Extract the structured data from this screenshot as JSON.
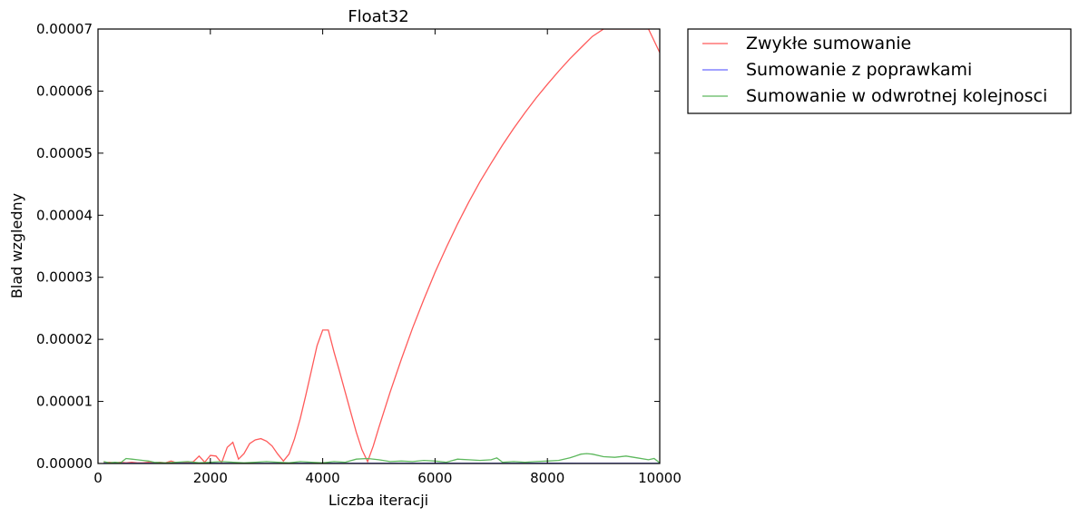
{
  "chart_data": {
    "type": "line",
    "title": "Float32",
    "xlabel": "Liczba iteracji",
    "ylabel": "Blad wzgledny",
    "xlim": [
      0,
      10000
    ],
    "ylim": [
      0,
      7e-05
    ],
    "xticks": [
      0,
      2000,
      4000,
      6000,
      8000,
      10000
    ],
    "xtick_labels": [
      "0",
      "2000",
      "4000",
      "6000",
      "8000",
      "10000"
    ],
    "yticks": [
      0,
      1e-05,
      2e-05,
      3e-05,
      4e-05,
      5e-05,
      6e-05,
      7e-05
    ],
    "ytick_labels": [
      "0.00000",
      "0.00001",
      "0.00002",
      "0.00003",
      "0.00004",
      "0.00005",
      "0.00006",
      "0.00007"
    ],
    "grid": false,
    "legend_position": "outside-top-right",
    "series": [
      {
        "name": "Zwykłe sumowanie",
        "color": "#ff5a5a",
        "x": [
          100,
          200,
          300,
          400,
          500,
          600,
          700,
          800,
          900,
          1000,
          1100,
          1200,
          1300,
          1400,
          1500,
          1600,
          1700,
          1800,
          1900,
          2000,
          2100,
          2200,
          2300,
          2400,
          2500,
          2600,
          2700,
          2800,
          2900,
          3000,
          3100,
          3200,
          3300,
          3400,
          3500,
          3600,
          3700,
          3800,
          3900,
          4000,
          4100,
          4200,
          4300,
          4400,
          4500,
          4600,
          4700,
          4800,
          4900,
          5000,
          5200,
          5400,
          5600,
          5800,
          6000,
          6200,
          6400,
          6600,
          6800,
          7000,
          7200,
          7400,
          7600,
          7800,
          8000,
          8200,
          8400,
          8600,
          8800,
          9000,
          9200,
          9400,
          9600,
          9800,
          10000
        ],
        "values": [
          1e-07,
          2e-07,
          1e-07,
          2e-07,
          1e-07,
          2e-07,
          1e-07,
          1e-07,
          2e-07,
          1e-07,
          2e-07,
          1e-07,
          4e-07,
          1e-07,
          2e-07,
          1e-07,
          3e-07,
          1.2e-06,
          2e-07,
          1.3e-06,
          1.2e-06,
          1e-07,
          2.6e-06,
          3.4e-06,
          7e-07,
          1.6e-06,
          3.2e-06,
          3.8e-06,
          4e-06,
          3.6e-06,
          2.8e-06,
          1.5e-06,
          4e-07,
          1.5e-06,
          4e-06,
          7.2e-06,
          1.1e-05,
          1.5e-05,
          1.9e-05,
          2.15e-05,
          2.15e-05,
          1.8e-05,
          1.48e-05,
          1.15e-05,
          8.2e-06,
          5e-06,
          2.2e-06,
          3e-07,
          2.8e-06,
          5.8e-06,
          1.15e-05,
          1.68e-05,
          2.18e-05,
          2.64e-05,
          3.08e-05,
          3.48e-05,
          3.86e-05,
          4.21e-05,
          4.54e-05,
          4.84e-05,
          5.13e-05,
          5.4e-05,
          5.65e-05,
          5.89e-05,
          6.11e-05,
          6.32e-05,
          6.52e-05,
          6.7e-05,
          6.88e-05,
          7.04e-05,
          7.2e-05,
          7.35e-05,
          7.49e-05,
          7.62e-05,
          6.62e-05
        ]
      },
      {
        "name": "Sumowanie z poprawkami",
        "color": "#6b6bff",
        "x": [
          100,
          1000,
          2000,
          3000,
          4000,
          5000,
          6000,
          7000,
          8000,
          9000,
          10000
        ],
        "values": [
          5e-08,
          3e-08,
          4e-08,
          3e-08,
          4e-08,
          3e-08,
          4e-08,
          3e-08,
          4e-08,
          3e-08,
          3e-08
        ]
      },
      {
        "name": "Sumowanie w odwrotnej kolejnosci",
        "color": "#5db85d",
        "x": [
          100,
          200,
          300,
          400,
          500,
          600,
          700,
          800,
          900,
          1000,
          1200,
          1400,
          1600,
          1800,
          2000,
          2200,
          2400,
          2600,
          2800,
          3000,
          3200,
          3400,
          3600,
          3800,
          4000,
          4200,
          4400,
          4600,
          4800,
          5000,
          5200,
          5400,
          5600,
          5800,
          6000,
          6200,
          6400,
          6600,
          6800,
          7000,
          7100,
          7200,
          7400,
          7600,
          7800,
          8000,
          8200,
          8400,
          8600,
          8700,
          8800,
          9000,
          9200,
          9400,
          9600,
          9800,
          9900,
          10000
        ],
        "values": [
          3e-07,
          1e-07,
          2e-07,
          1e-07,
          8e-07,
          7e-07,
          6e-07,
          5e-07,
          4e-07,
          2e-07,
          1e-07,
          2e-07,
          3e-07,
          1e-07,
          2e-07,
          3e-07,
          2e-07,
          1e-07,
          2e-07,
          3e-07,
          2e-07,
          1e-07,
          3e-07,
          2e-07,
          1e-07,
          3e-07,
          2e-07,
          7e-07,
          8e-07,
          6e-07,
          3e-07,
          4e-07,
          3e-07,
          5e-07,
          4e-07,
          2e-07,
          7e-07,
          6e-07,
          5e-07,
          6e-07,
          9e-07,
          2e-07,
          3e-07,
          2e-07,
          3e-07,
          4e-07,
          5e-07,
          9e-07,
          1.5e-06,
          1.6e-06,
          1.5e-06,
          1.1e-06,
          1e-06,
          1.2e-06,
          9e-07,
          6e-07,
          8e-07,
          1e-07
        ]
      }
    ]
  }
}
